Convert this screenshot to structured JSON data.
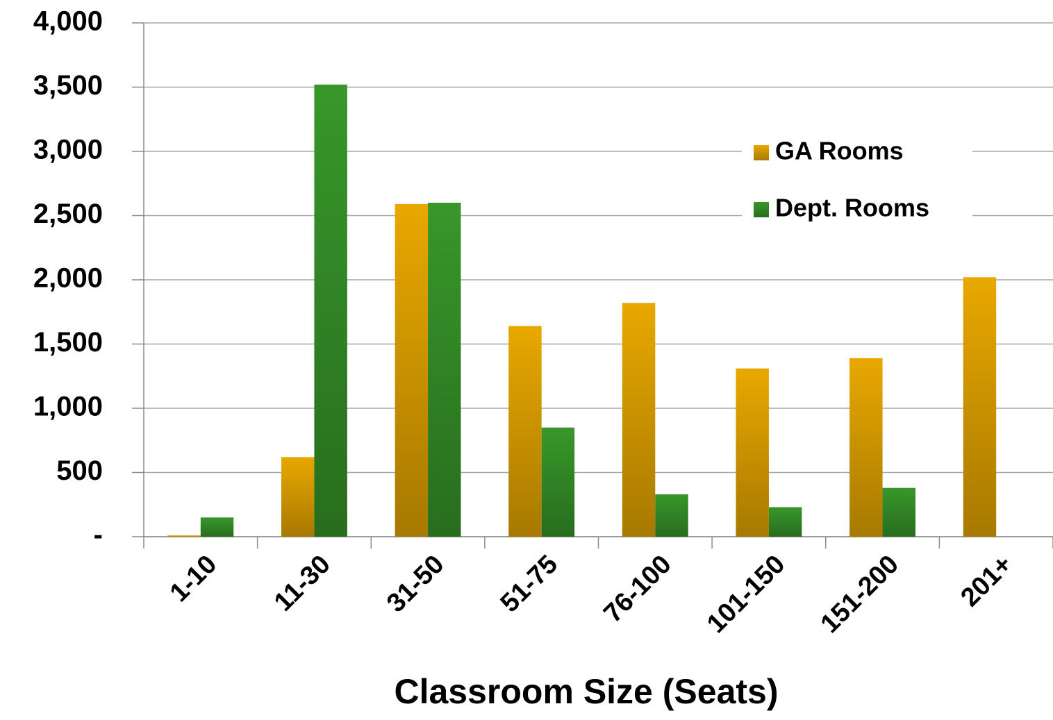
{
  "chart_data": {
    "type": "bar",
    "x_label": "Classroom Size (Seats)",
    "categories": [
      "1-10",
      "11-30",
      "31-50",
      "51-75",
      "76-100",
      "101-150",
      "151-200",
      "201+"
    ],
    "series": [
      {
        "name": "GA Rooms",
        "color": "#e8a800",
        "values": [
          10,
          620,
          2590,
          1640,
          1820,
          1310,
          1390,
          2020
        ]
      },
      {
        "name": "Dept. Rooms",
        "color": "#38972a",
        "values": [
          150,
          3520,
          2600,
          850,
          330,
          230,
          380,
          0
        ]
      }
    ],
    "ylim": [
      0,
      4000
    ],
    "yticks": [
      {
        "value": 0,
        "label": "-"
      },
      500,
      {
        "value": 1000,
        "label": "1,000"
      },
      {
        "value": 1500,
        "label": "1,500"
      },
      {
        "value": 2000,
        "label": "2,000"
      },
      {
        "value": 2500,
        "label": "2,500"
      },
      {
        "value": 3000,
        "label": "3,000"
      },
      {
        "value": 3500,
        "label": "3,500"
      },
      {
        "value": 4000,
        "label": "4,000"
      }
    ],
    "grid": true,
    "legend": "upper right"
  }
}
